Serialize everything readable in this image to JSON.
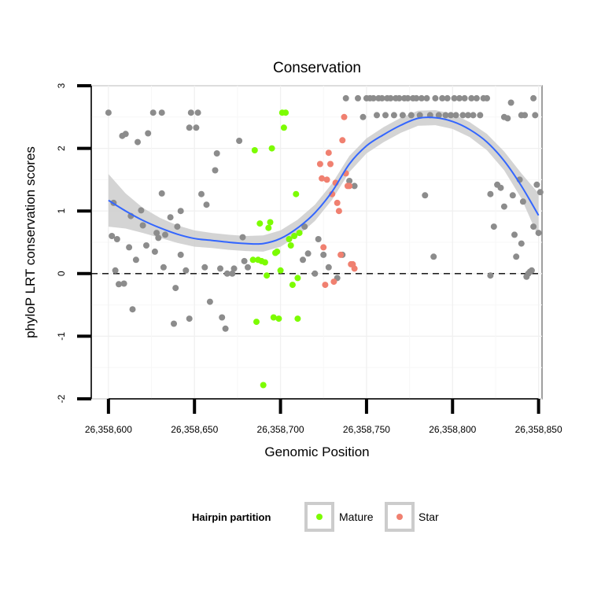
{
  "chart_data": {
    "type": "scatter",
    "title": "Conservation",
    "xlabel": "Genomic Position",
    "ylabel": "phyloP LRT conservation scores",
    "xlim": [
      26358590,
      26358852
    ],
    "ylim": [
      -2,
      3
    ],
    "x_ticks": [
      26358600,
      26358650,
      26358700,
      26358750,
      26358800,
      26358850
    ],
    "x_tick_labels": [
      "26,358,600",
      "26,358,650",
      "26,358,700",
      "26,358,750",
      "26,358,800",
      "26,358,850"
    ],
    "y_ticks": [
      -2,
      -1,
      0,
      1,
      2,
      3
    ],
    "y_tick_labels": [
      "-2",
      "-1",
      "0",
      "1",
      "2",
      "3"
    ],
    "reference_line": 0,
    "legend": {
      "title": "Hairpin partition",
      "entries": [
        {
          "label": "Mature",
          "color": "#7cfc00"
        },
        {
          "label": "Star",
          "color": "#f08070"
        }
      ]
    },
    "colors": {
      "other": "#8c8c8c",
      "mature": "#7cfc00",
      "star": "#f08070",
      "smooth": "#3366ff",
      "ribbon": "#cccccc"
    },
    "series": [
      {
        "name": "Other",
        "points": [
          [
            26358600,
            2.57
          ],
          [
            26358602,
            0.6
          ],
          [
            26358603,
            1.13
          ],
          [
            26358604,
            0.05
          ],
          [
            26358605,
            0.55
          ],
          [
            26358606,
            -0.17
          ],
          [
            26358608,
            2.2
          ],
          [
            26358609,
            -0.16
          ],
          [
            26358610,
            2.23
          ],
          [
            26358612,
            0.42
          ],
          [
            26358613,
            0.92
          ],
          [
            26358614,
            -0.57
          ],
          [
            26358616,
            0.22
          ],
          [
            26358617,
            2.1
          ],
          [
            26358619,
            1.01
          ],
          [
            26358620,
            0.77
          ],
          [
            26358622,
            0.45
          ],
          [
            26358623,
            2.24
          ],
          [
            26358626,
            2.57
          ],
          [
            26358627,
            0.35
          ],
          [
            26358628,
            0.65
          ],
          [
            26358629,
            0.57
          ],
          [
            26358631,
            2.57
          ],
          [
            26358631,
            1.28
          ],
          [
            26358632,
            0.1
          ],
          [
            26358633,
            0.62
          ],
          [
            26358636,
            0.9
          ],
          [
            26358638,
            -0.8
          ],
          [
            26358639,
            -0.23
          ],
          [
            26358640,
            0.75
          ],
          [
            26358642,
            0.3
          ],
          [
            26358642,
            1.0
          ],
          [
            26358645,
            0.05
          ],
          [
            26358647,
            -0.72
          ],
          [
            26358647,
            2.33
          ],
          [
            26358648,
            2.57
          ],
          [
            26358651,
            2.33
          ],
          [
            26358652,
            2.57
          ],
          [
            26358654,
            1.27
          ],
          [
            26358656,
            0.1
          ],
          [
            26358657,
            1.1
          ],
          [
            26358659,
            -0.45
          ],
          [
            26358662,
            1.65
          ],
          [
            26358663,
            1.92
          ],
          [
            26358665,
            0.08
          ],
          [
            26358666,
            -0.7
          ],
          [
            26358668,
            -0.88
          ],
          [
            26358669,
            0.0
          ],
          [
            26358672,
            0.0
          ],
          [
            26358673,
            0.08
          ],
          [
            26358676,
            2.12
          ],
          [
            26358678,
            0.58
          ],
          [
            26358679,
            0.2
          ],
          [
            26358681,
            0.1
          ],
          [
            26358713,
            0.22
          ],
          [
            26358714,
            0.75
          ],
          [
            26358716,
            0.32
          ],
          [
            26358720,
            0.0
          ],
          [
            26358722,
            0.55
          ],
          [
            26358725,
            0.3
          ],
          [
            26358728,
            0.1
          ],
          [
            26358733,
            -0.07
          ],
          [
            26358736,
            0.3
          ],
          [
            26358738,
            2.8
          ],
          [
            26358740,
            1.48
          ],
          [
            26358743,
            1.4
          ],
          [
            26358745,
            2.8
          ],
          [
            26358748,
            2.5
          ],
          [
            26358750,
            2.8
          ],
          [
            26358752,
            2.8
          ],
          [
            26358754,
            2.8
          ],
          [
            26358756,
            2.53
          ],
          [
            26358757,
            2.8
          ],
          [
            26358759,
            2.8
          ],
          [
            26358761,
            2.53
          ],
          [
            26358762,
            2.8
          ],
          [
            26358764,
            2.8
          ],
          [
            26358766,
            2.53
          ],
          [
            26358767,
            2.8
          ],
          [
            26358769,
            2.8
          ],
          [
            26358771,
            2.53
          ],
          [
            26358772,
            2.8
          ],
          [
            26358774,
            2.8
          ],
          [
            26358776,
            2.53
          ],
          [
            26358777,
            2.8
          ],
          [
            26358779,
            2.8
          ],
          [
            26358781,
            2.53
          ],
          [
            26358782,
            2.8
          ],
          [
            26358784,
            1.25
          ],
          [
            26358785,
            2.8
          ],
          [
            26358787,
            2.53
          ],
          [
            26358789,
            0.27
          ],
          [
            26358790,
            2.8
          ],
          [
            26358792,
            2.53
          ],
          [
            26358794,
            2.8
          ],
          [
            26358796,
            2.53
          ],
          [
            26358797,
            2.8
          ],
          [
            26358799,
            2.53
          ],
          [
            26358801,
            2.8
          ],
          [
            26358802,
            2.53
          ],
          [
            26358804,
            2.8
          ],
          [
            26358806,
            2.53
          ],
          [
            26358807,
            2.8
          ],
          [
            26358809,
            2.53
          ],
          [
            26358811,
            2.8
          ],
          [
            26358812,
            2.53
          ],
          [
            26358814,
            2.8
          ],
          [
            26358816,
            2.53
          ],
          [
            26358818,
            2.8
          ],
          [
            26358820,
            2.8
          ],
          [
            26358822,
            1.27
          ],
          [
            26358822,
            -0.03
          ],
          [
            26358824,
            0.75
          ],
          [
            26358826,
            1.42
          ],
          [
            26358828,
            1.37
          ],
          [
            26358830,
            1.07
          ],
          [
            26358830,
            2.5
          ],
          [
            26358832,
            2.48
          ],
          [
            26358834,
            2.73
          ],
          [
            26358835,
            1.25
          ],
          [
            26358836,
            0.62
          ],
          [
            26358837,
            0.27
          ],
          [
            26358839,
            1.5
          ],
          [
            26358840,
            2.53
          ],
          [
            26358840,
            0.48
          ],
          [
            26358841,
            1.15
          ],
          [
            26358842,
            2.53
          ],
          [
            26358843,
            -0.05
          ],
          [
            26358844,
            0.0
          ],
          [
            26358845,
            0.03
          ],
          [
            26358846,
            0.05
          ],
          [
            26358847,
            2.8
          ],
          [
            26358847,
            0.75
          ],
          [
            26358848,
            2.53
          ],
          [
            26358849,
            1.42
          ],
          [
            26358850,
            0.65
          ],
          [
            26358851,
            1.3
          ]
        ]
      },
      {
        "name": "Mature",
        "points": [
          [
            26358684,
            0.22
          ],
          [
            26358685,
            1.97
          ],
          [
            26358686,
            -0.77
          ],
          [
            26358687,
            0.22
          ],
          [
            26358688,
            0.8
          ],
          [
            26358689,
            0.2
          ],
          [
            26358690,
            -1.78
          ],
          [
            26358691,
            0.18
          ],
          [
            26358692,
            -0.03
          ],
          [
            26358693,
            0.73
          ],
          [
            26358694,
            0.82
          ],
          [
            26358695,
            2.0
          ],
          [
            26358696,
            -0.7
          ],
          [
            26358697,
            0.33
          ],
          [
            26358698,
            0.35
          ],
          [
            26358699,
            -0.72
          ],
          [
            26358700,
            0.05
          ],
          [
            26358701,
            2.57
          ],
          [
            26358702,
            2.33
          ],
          [
            26358703,
            2.57
          ],
          [
            26358705,
            0.55
          ],
          [
            26358706,
            0.45
          ],
          [
            26358707,
            -0.18
          ],
          [
            26358708,
            0.6
          ],
          [
            26358709,
            1.27
          ],
          [
            26358710,
            -0.72
          ],
          [
            26358710,
            -0.07
          ],
          [
            26358711,
            0.65
          ]
        ]
      },
      {
        "name": "Star",
        "points": [
          [
            26358723,
            1.75
          ],
          [
            26358724,
            1.52
          ],
          [
            26358725,
            0.42
          ],
          [
            26358726,
            -0.18
          ],
          [
            26358727,
            1.5
          ],
          [
            26358728,
            1.93
          ],
          [
            26358729,
            1.75
          ],
          [
            26358730,
            1.27
          ],
          [
            26358731,
            -0.13
          ],
          [
            26358732,
            1.45
          ],
          [
            26358733,
            1.13
          ],
          [
            26358734,
            1.0
          ],
          [
            26358735,
            0.3
          ],
          [
            26358736,
            2.13
          ],
          [
            26358737,
            2.5
          ],
          [
            26358738,
            1.6
          ],
          [
            26358739,
            1.4
          ],
          [
            26358740,
            1.4
          ],
          [
            26358741,
            0.15
          ],
          [
            26358742,
            0.15
          ],
          [
            26358743,
            0.08
          ]
        ]
      }
    ],
    "smooth": {
      "method": "loess",
      "fit": [
        [
          26358600,
          1.17
        ],
        [
          26358610,
          1.0
        ],
        [
          26358620,
          0.85
        ],
        [
          26358630,
          0.73
        ],
        [
          26358640,
          0.63
        ],
        [
          26358650,
          0.56
        ],
        [
          26358660,
          0.53
        ],
        [
          26358670,
          0.5
        ],
        [
          26358680,
          0.48
        ],
        [
          26358690,
          0.48
        ],
        [
          26358700,
          0.56
        ],
        [
          26358710,
          0.73
        ],
        [
          26358720,
          0.97
        ],
        [
          26358730,
          1.31
        ],
        [
          26358740,
          1.75
        ],
        [
          26358750,
          2.04
        ],
        [
          26358760,
          2.22
        ],
        [
          26358770,
          2.37
        ],
        [
          26358780,
          2.48
        ],
        [
          26358790,
          2.49
        ],
        [
          26358800,
          2.43
        ],
        [
          26358810,
          2.3
        ],
        [
          26358820,
          2.1
        ],
        [
          26358830,
          1.8
        ],
        [
          26358840,
          1.4
        ],
        [
          26358850,
          0.93
        ]
      ],
      "se": [
        0.42,
        0.28,
        0.2,
        0.16,
        0.14,
        0.13,
        0.12,
        0.12,
        0.12,
        0.13,
        0.13,
        0.13,
        0.13,
        0.13,
        0.13,
        0.12,
        0.12,
        0.12,
        0.12,
        0.12,
        0.12,
        0.12,
        0.13,
        0.15,
        0.2,
        0.35
      ]
    }
  }
}
